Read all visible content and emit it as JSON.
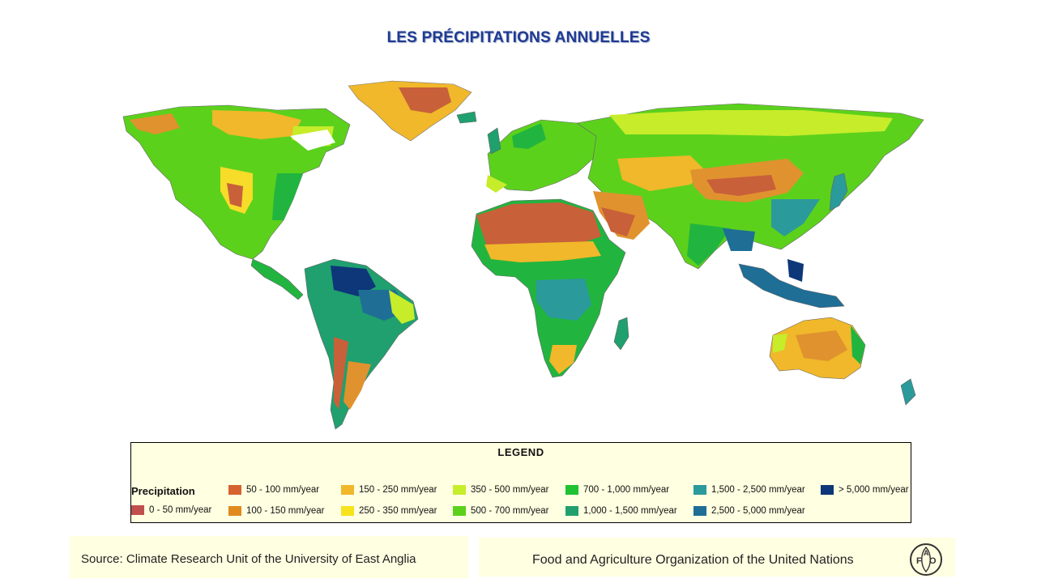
{
  "title": "LES PRÉCIPITATIONS ANNUELLES",
  "map": {
    "subject": "world-annual-precipitation",
    "colors": {
      "ocean": "#ffffff",
      "desert": "#c8603a",
      "arid": "#e0922e",
      "semi_arid": "#f0b82a",
      "dry": "#f7dc2a",
      "steppe": "#c6ec2a",
      "moderate": "#5cd11c",
      "humid": "#21b53f",
      "wet": "#1fa06e",
      "very_wet": "#2a9a9a",
      "tropical": "#1e6e96",
      "extreme": "#0d3778",
      "borders": "#555555"
    }
  },
  "legend": {
    "title": "LEGEND",
    "subtitle": "Precipitation",
    "items": [
      {
        "label": "0 - 50 mm/year",
        "color": "#c0504d"
      },
      {
        "label": "50 - 100 mm/year",
        "color": "#d5622f"
      },
      {
        "label": "100 - 150 mm/year",
        "color": "#e08a1e"
      },
      {
        "label": "150 - 250 mm/year",
        "color": "#f0b82a"
      },
      {
        "label": "250 - 350 mm/year",
        "color": "#f7e21e"
      },
      {
        "label": "350 - 500 mm/year",
        "color": "#c6ee2c"
      },
      {
        "label": "500 - 700 mm/year",
        "color": "#5cd11c"
      },
      {
        "label": "700 - 1,000 mm/year",
        "color": "#1ec232"
      },
      {
        "label": "1,000 - 1,500 mm/year",
        "color": "#21a06e"
      },
      {
        "label": "1,500 - 2,500 mm/year",
        "color": "#2a9a9a"
      },
      {
        "label": "2,500 - 5,000 mm/year",
        "color": "#1e6e96"
      },
      {
        "label": "> 5,000  mm/year",
        "color": "#0d3778"
      }
    ]
  },
  "footer": {
    "source": "Source:  Climate Research Unit of the University of East Anglia",
    "organization": "Food and Agriculture Organization of the United Nations",
    "logo_text": "FAO"
  }
}
